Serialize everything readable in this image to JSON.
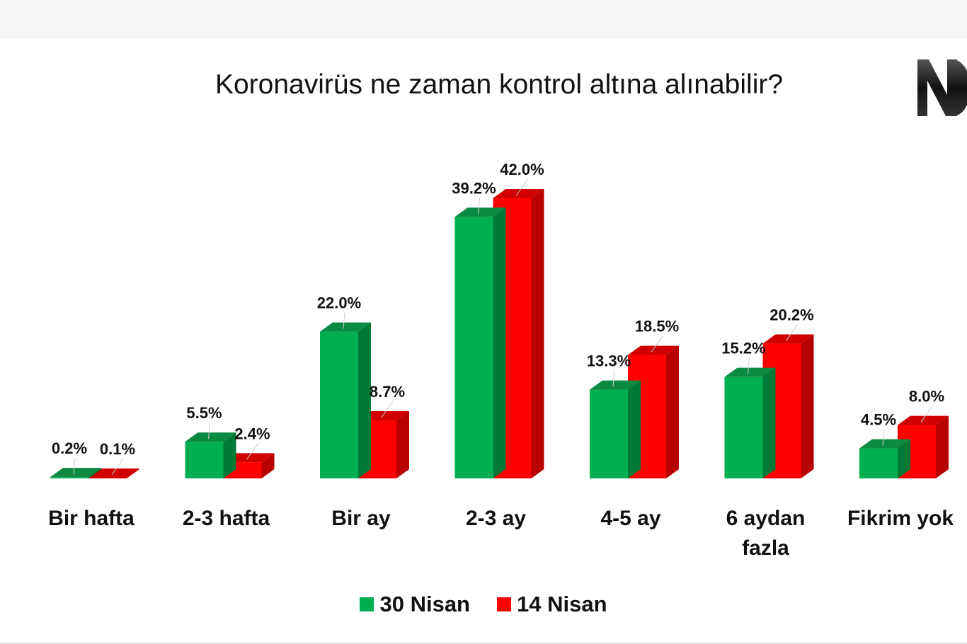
{
  "colors": {
    "series_30_front": "#00b050",
    "series_30_side": "#007a37",
    "series_30_top": "#0b8a42",
    "series_14_front": "#ff0000",
    "series_14_side": "#b80000",
    "series_14_top": "#d00000"
  },
  "logo": {
    "icon": "logo-mark"
  },
  "chart_data": {
    "type": "bar",
    "title": "Koronavirüs ne zaman kontrol altına alınabilir?",
    "categories": [
      [
        "Bir hafta"
      ],
      [
        "2-3 hafta"
      ],
      [
        "Bir ay"
      ],
      [
        "2-3 ay"
      ],
      [
        "4-5 ay"
      ],
      [
        "6 aydan",
        "fazla"
      ],
      [
        "Fikrim yok"
      ]
    ],
    "series": [
      {
        "name": "30 Nisan",
        "values": [
          0.2,
          5.5,
          22.0,
          39.2,
          13.3,
          15.2,
          4.5
        ],
        "labels": [
          "0.2%",
          "5.5%",
          "22.0%",
          "39.2%",
          "13.3%",
          "15.2%",
          "4.5%"
        ]
      },
      {
        "name": "14 Nisan",
        "values": [
          0.1,
          2.4,
          8.7,
          42.0,
          18.5,
          20.2,
          8.0
        ],
        "labels": [
          "0.1%",
          "2.4%",
          "8.7%",
          "42.0%",
          "18.5%",
          "20.2%",
          "8.0%"
        ]
      }
    ],
    "ylim": [
      0,
      42
    ],
    "grid": false,
    "legend": "bottom",
    "style": "3d-clustered-column"
  }
}
